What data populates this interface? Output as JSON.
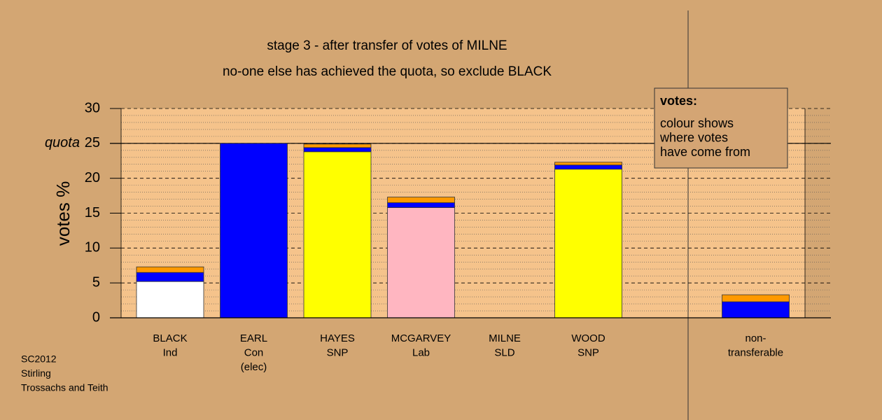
{
  "chart_data": {
    "type": "stacked_bar",
    "title": "stage 3 - after transfer of votes of MILNE",
    "subtitle": "no-one else has achieved the quota, so exclude BLACK",
    "y_label": "votes %",
    "quota": {
      "label": "quota",
      "value": 25
    },
    "categories": [
      [
        "BLACK",
        "Ind"
      ],
      [
        "EARL",
        "Con",
        "(elec)"
      ],
      [
        "HAYES",
        "SNP"
      ],
      [
        "MCGARVEY",
        "Lab"
      ],
      [
        "MILNE",
        "SLD"
      ],
      [
        "WOOD",
        "SNP"
      ],
      null,
      [
        "non-",
        "transferable"
      ]
    ],
    "series": [
      {
        "color": "#ffffff",
        "values": [
          5.2,
          0,
          0,
          0,
          0,
          0,
          null,
          0
        ]
      },
      {
        "color": "#ffff00",
        "values": [
          0,
          0,
          23.8,
          0,
          0,
          21.3,
          null,
          0
        ]
      },
      {
        "color": "#ffb6c1",
        "values": [
          0,
          0,
          0,
          15.8,
          0,
          0,
          null,
          0
        ]
      },
      {
        "color": "#0000ff",
        "values": [
          1.3,
          25,
          0.6,
          0.7,
          0,
          0.6,
          null,
          2.3
        ]
      },
      {
        "color": "#ff9900",
        "values": [
          0.8,
          0,
          0.5,
          0.8,
          0,
          0.4,
          null,
          1.0
        ]
      }
    ],
    "ylim": [
      0,
      30
    ],
    "yticks": [
      0,
      5,
      10,
      15,
      20,
      25,
      30
    ],
    "minor_yticks": [
      1,
      2,
      3,
      4,
      6,
      7,
      8,
      9,
      11,
      12,
      13,
      14,
      16,
      17,
      18,
      19,
      21,
      22,
      23,
      24,
      26,
      27,
      28,
      29
    ],
    "grid": true,
    "legend_box": {
      "title": "votes:",
      "lines": [
        "colour shows",
        "where votes",
        "have come from"
      ]
    },
    "footnote": [
      "SC2012",
      "Stirling",
      "Trossachs and Teith"
    ]
  }
}
